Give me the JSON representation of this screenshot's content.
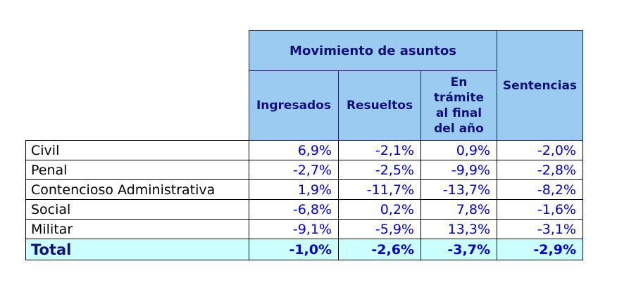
{
  "chart_data": {
    "type": "table",
    "group_header": "Movimiento de asuntos",
    "sentencias_header": "Sentencias",
    "columns": [
      "Ingresados",
      "Resueltos",
      "En trámite al final del año",
      "Sentencias"
    ],
    "columns_display": [
      "Ingresados",
      "Resueltos",
      "En\ntrámite\nal final\ndel año"
    ],
    "rows": [
      {
        "label": "Civil",
        "display": [
          "6,9%",
          "-2,1%",
          "0,9%",
          "-2,0%"
        ],
        "numeric": [
          6.9,
          -2.1,
          0.9,
          -2.0
        ]
      },
      {
        "label": "Penal",
        "display": [
          "-2,7%",
          "-2,5%",
          "-9,9%",
          "-2,8%"
        ],
        "numeric": [
          -2.7,
          -2.5,
          -9.9,
          -2.8
        ]
      },
      {
        "label": "Contencioso Administrativa",
        "display": [
          "1,9%",
          "-11,7%",
          "-13,7%",
          "-8,2%"
        ],
        "numeric": [
          1.9,
          -11.7,
          -13.7,
          -8.2
        ]
      },
      {
        "label": "Social",
        "display": [
          "-6,8%",
          "0,2%",
          "7,8%",
          "-1,6%"
        ],
        "numeric": [
          -6.8,
          0.2,
          7.8,
          -1.6
        ]
      },
      {
        "label": "Militar",
        "display": [
          "-9,1%",
          "-5,9%",
          "13,3%",
          "-3,1%"
        ],
        "numeric": [
          -9.1,
          -5.9,
          13.3,
          -3.1
        ]
      }
    ],
    "total": {
      "label": "Total",
      "display": [
        "-1,0%",
        "-2,6%",
        "-3,7%",
        "-2,9%"
      ],
      "numeric": [
        -1.0,
        -2.6,
        -3.7,
        -2.9
      ]
    },
    "units": "percent change"
  },
  "colors": {
    "header_bg": "#9CCBF2",
    "total_bg": "#CCFFFF",
    "header_text": "#101078",
    "value_text": "#0000CC",
    "label_text": "#000000",
    "header_border": "#1A1A6E",
    "body_border": "#000000"
  }
}
